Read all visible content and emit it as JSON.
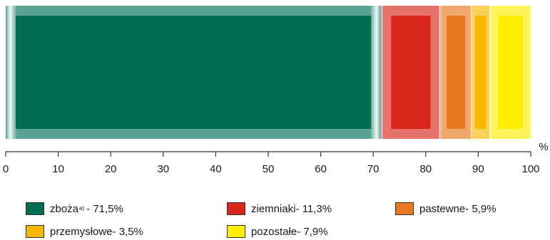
{
  "chart_data": {
    "type": "bar",
    "orientation": "horizontal-stacked",
    "unit": "%",
    "xlim": [
      0,
      100
    ],
    "ticks": [
      "0",
      "10",
      "20",
      "30",
      "40",
      "50",
      "60",
      "70",
      "80",
      "90",
      "100"
    ],
    "series": [
      {
        "name": "zboża",
        "superscript": "a)",
        "value": 71.5,
        "legend": " - 71,5%",
        "color": "#006e55"
      },
      {
        "name": "ziemniaki",
        "value": 11.3,
        "legend": " - 11,3%",
        "color": "#d9261c"
      },
      {
        "name": "pastewne",
        "value": 5.9,
        "legend": " - 5,9%",
        "color": "#e8791f"
      },
      {
        "name": "przemysłowe",
        "value": 3.5,
        "legend": " - 3,5%",
        "color": "#f7b800"
      },
      {
        "name": "pozostałe",
        "value": 7.9,
        "legend": " - 7,9%",
        "color": "#ffee00"
      }
    ]
  }
}
